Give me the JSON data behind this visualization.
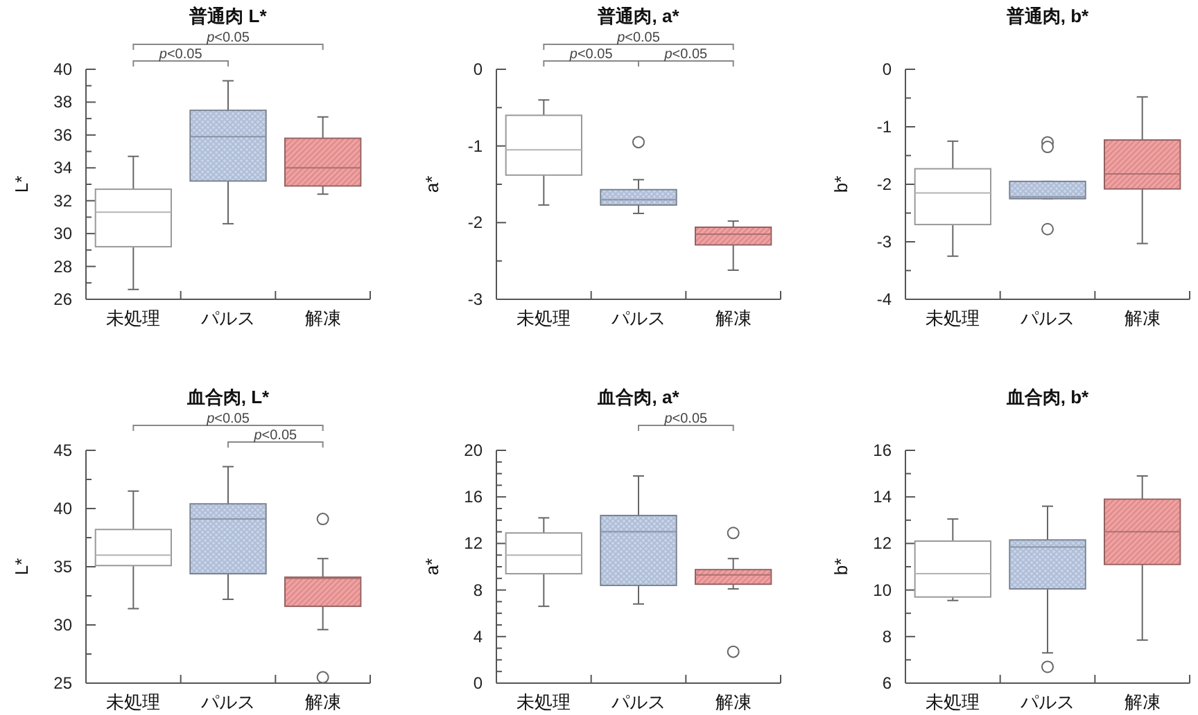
{
  "chart_data": [
    {
      "type": "box",
      "title": "普通肉 L*",
      "ylabel": "L*",
      "categories": [
        "未処理",
        "パルス",
        "解凍"
      ],
      "colors": [
        "#ffffff",
        "#c5d3ec",
        "#f4a0a0"
      ],
      "boxes": [
        {
          "low": 26.6,
          "q1": 29.2,
          "median": 31.3,
          "q3": 32.7,
          "high": 34.7
        },
        {
          "low": 30.6,
          "q1": 33.2,
          "median": 35.9,
          "q3": 37.5,
          "high": 39.3
        },
        {
          "low": 32.4,
          "q1": 32.9,
          "median": 34.0,
          "q3": 35.8,
          "high": 37.1
        }
      ],
      "ylim": [
        26,
        40
      ],
      "yticks": [
        26,
        {
          "value": 27,
          "label": null
        },
        28,
        {
          "value": 29,
          "label": null
        },
        30,
        {
          "value": 31,
          "label": null
        },
        32,
        {
          "value": 33,
          "label": null
        },
        34,
        {
          "value": 35,
          "label": null
        },
        36,
        {
          "value": 37,
          "label": null
        },
        38,
        {
          "value": 39,
          "label": null
        },
        40
      ],
      "annotations": [
        "p<0.05",
        "p<0.05"
      ],
      "grid": false
    },
    {
      "type": "box",
      "title": "普通肉, a*",
      "ylabel": "a*",
      "categories": [
        "未処理",
        "パルス",
        "解凍"
      ],
      "colors": [
        "#ffffff",
        "#c5d3ec",
        "#f4a0a0"
      ],
      "boxes": [
        {
          "low": -1.77,
          "q1": -1.38,
          "median": -1.05,
          "q3": -0.6,
          "high": -0.4
        },
        {
          "low": -1.88,
          "q1": -1.77,
          "median": -1.7,
          "q3": -1.57,
          "high": -1.44,
          "outliers": [
            -0.95
          ]
        },
        {
          "low": -2.62,
          "q1": -2.29,
          "median": -2.15,
          "q3": -2.06,
          "high": -1.98
        }
      ],
      "ylim": [
        -3,
        0
      ],
      "yticks": [
        -3,
        {
          "value": -2.5,
          "label": null
        },
        -2,
        {
          "value": -1.5,
          "label": null
        },
        -1,
        {
          "value": -0.5,
          "label": null
        },
        0
      ],
      "annotations": [
        "p<0.05",
        "p<0.05",
        "p<0.05"
      ],
      "grid": false
    },
    {
      "type": "box",
      "title": "普通肉, b*",
      "ylabel": "b*",
      "categories": [
        "未処理",
        "パルス",
        "解凍"
      ],
      "colors": [
        "#ffffff",
        "#c5d3ec",
        "#f4a0a0"
      ],
      "boxes": [
        {
          "low": -3.25,
          "q1": -2.7,
          "median": -2.15,
          "q3": -1.73,
          "high": -1.25
        },
        {
          "low": -2.25,
          "q1": -2.25,
          "median": -2.22,
          "q3": -1.95,
          "high": -1.95,
          "outliers": [
            -1.27,
            -1.35,
            -2.78
          ]
        },
        {
          "low": -3.03,
          "q1": -2.08,
          "median": -1.82,
          "q3": -1.23,
          "high": -0.48
        }
      ],
      "ylim": [
        -4,
        0
      ],
      "yticks": [
        -4,
        {
          "value": -3.5,
          "label": null
        },
        -3,
        {
          "value": -2.5,
          "label": null
        },
        -2,
        {
          "value": -1.5,
          "label": null
        },
        -1,
        {
          "value": -0.5,
          "label": null
        },
        0
      ],
      "grid": false
    },
    {
      "type": "box",
      "title": "血合肉, L*",
      "ylabel": "L*",
      "categories": [
        "未処理",
        "パルス",
        "解凍"
      ],
      "colors": [
        "#ffffff",
        "#c5d3ec",
        "#f4a0a0"
      ],
      "boxes": [
        {
          "low": 31.4,
          "q1": 35.1,
          "median": 36.0,
          "q3": 38.2,
          "high": 41.5
        },
        {
          "low": 32.2,
          "q1": 34.4,
          "median": 39.1,
          "q3": 40.4,
          "high": 43.6
        },
        {
          "low": 29.6,
          "q1": 31.6,
          "median": 34.0,
          "q3": 34.1,
          "high": 35.7,
          "outliers": [
            39.1,
            25.5
          ]
        }
      ],
      "ylim": [
        25,
        45
      ],
      "yticks": [
        25,
        {
          "value": 27.5,
          "label": null
        },
        30,
        {
          "value": 32.5,
          "label": null
        },
        35,
        {
          "value": 37.5,
          "label": null
        },
        40,
        {
          "value": 42.5,
          "label": null
        },
        45
      ],
      "annotations": [
        "p<0.05",
        "p<0.05"
      ],
      "grid": false
    },
    {
      "type": "box",
      "title": "血合肉, a*",
      "ylabel": "a*",
      "categories": [
        "未処理",
        "パルス",
        "解凍"
      ],
      "colors": [
        "#ffffff",
        "#c5d3ec",
        "#f4a0a0"
      ],
      "boxes": [
        {
          "low": 6.6,
          "q1": 9.4,
          "median": 11.0,
          "q3": 12.9,
          "high": 14.2
        },
        {
          "low": 6.8,
          "q1": 8.4,
          "median": 13.0,
          "q3": 14.4,
          "high": 17.8
        },
        {
          "low": 8.1,
          "q1": 8.5,
          "median": 9.3,
          "q3": 9.75,
          "high": 10.7,
          "outliers": [
            12.9,
            2.7
          ]
        }
      ],
      "ylim": [
        0,
        20
      ],
      "yticks": [
        0,
        {
          "value": 1,
          "label": null
        },
        {
          "value": 2,
          "label": null
        },
        {
          "value": 3,
          "label": null
        },
        4,
        {
          "value": 5,
          "label": null
        },
        {
          "value": 6,
          "label": null
        },
        {
          "value": 7,
          "label": null
        },
        8,
        {
          "value": 9,
          "label": null
        },
        {
          "value": 10,
          "label": null
        },
        {
          "value": 11,
          "label": null
        },
        12,
        {
          "value": 13,
          "label": null
        },
        {
          "value": 14,
          "label": null
        },
        {
          "value": 15,
          "label": null
        },
        16,
        {
          "value": 17,
          "label": null
        },
        {
          "value": 18,
          "label": null
        },
        {
          "value": 19,
          "label": null
        },
        20
      ],
      "annotations": [
        "p<0.05"
      ],
      "grid": false
    },
    {
      "type": "box",
      "title": "血合肉, b*",
      "ylabel": "b*",
      "categories": [
        "未処理",
        "パルス",
        "解凍"
      ],
      "colors": [
        "#ffffff",
        "#c5d3ec",
        "#f4a0a0"
      ],
      "boxes": [
        {
          "low": 9.55,
          "q1": 9.7,
          "median": 10.7,
          "q3": 12.1,
          "high": 13.05
        },
        {
          "low": 7.3,
          "q1": 10.05,
          "median": 11.85,
          "q3": 12.15,
          "high": 13.6,
          "outliers": [
            6.7
          ]
        },
        {
          "low": 7.85,
          "q1": 11.1,
          "median": 12.5,
          "q3": 13.9,
          "high": 14.9
        }
      ],
      "ylim": [
        6,
        16
      ],
      "yticks": [
        6,
        {
          "value": 7,
          "label": null
        },
        8,
        {
          "value": 9,
          "label": null
        },
        10,
        {
          "value": 11,
          "label": null
        },
        12,
        {
          "value": 13,
          "label": null
        },
        14,
        {
          "value": 15,
          "label": null
        },
        16
      ],
      "grid": false
    }
  ]
}
